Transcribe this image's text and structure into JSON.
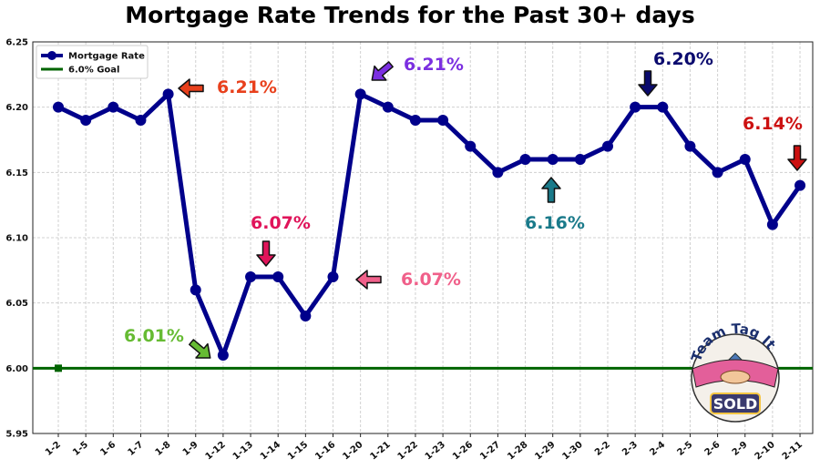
{
  "chart_data": {
    "type": "line",
    "title": "Mortgage Rate Trends for the Past 30+ days",
    "xlabel": "",
    "ylabel": "",
    "categories": [
      "1-2",
      "1-5",
      "1-6",
      "1-7",
      "1-8",
      "1-9",
      "1-12",
      "1-13",
      "1-14",
      "1-15",
      "1-16",
      "1-20",
      "1-21",
      "1-22",
      "1-23",
      "1-26",
      "1-27",
      "1-28",
      "1-29",
      "1-30",
      "2-2",
      "2-3",
      "2-4",
      "2-5",
      "2-6",
      "2-9",
      "2-10",
      "2-11"
    ],
    "series": [
      {
        "name": "Mortgage Rate",
        "color": "#00008b",
        "values": [
          6.2,
          6.19,
          6.2,
          6.19,
          6.21,
          6.06,
          6.01,
          6.07,
          6.07,
          6.04,
          6.07,
          6.21,
          6.2,
          6.19,
          6.19,
          6.17,
          6.15,
          6.16,
          6.16,
          6.16,
          6.17,
          6.2,
          6.2,
          6.17,
          6.15,
          6.16,
          6.11,
          6.14
        ]
      },
      {
        "name": "6.0% Goal",
        "color": "#006400",
        "value": 6.0
      }
    ],
    "ylim": [
      5.95,
      6.25
    ],
    "yticks": [
      "5.95",
      "6.00",
      "6.05",
      "6.10",
      "6.15",
      "6.20",
      "6.25"
    ],
    "grid": true,
    "legend": "top-left",
    "annotations": [
      {
        "text": "6.21%",
        "index": 4,
        "value": 6.21,
        "color": "#e8401c",
        "arrow": "left"
      },
      {
        "text": "6.01%",
        "index": 6,
        "value": 6.01,
        "color": "#66bb33",
        "arrow": "down-right"
      },
      {
        "text": "6.07%",
        "index": 8,
        "value": 6.07,
        "color": "#e0145a",
        "arrow": "down"
      },
      {
        "text": "6.07%",
        "index": 10,
        "value": 6.07,
        "color": "#f0608a",
        "arrow": "left"
      },
      {
        "text": "6.21%",
        "index": 11,
        "value": 6.21,
        "color": "#7b2fe0",
        "arrow": "down-left"
      },
      {
        "text": "6.16%",
        "index": 18,
        "value": 6.16,
        "color": "#1a7a8a",
        "arrow": "up"
      },
      {
        "text": "6.20%",
        "index": 22,
        "value": 6.2,
        "color": "#0a0a6e",
        "arrow": "down"
      },
      {
        "text": "6.14%",
        "index": 27,
        "value": 6.14,
        "color": "#cc1111",
        "arrow": "down"
      }
    ]
  },
  "logo": {
    "top_text": "Team Tag It",
    "badge_text": "SOLD"
  }
}
